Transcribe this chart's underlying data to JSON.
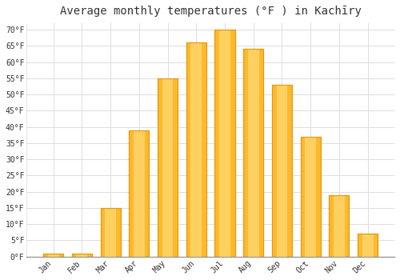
{
  "title": "Average monthly temperatures (°F ) in Kachīry",
  "months": [
    "Jan",
    "Feb",
    "Mar",
    "Apr",
    "May",
    "Jun",
    "Jul",
    "Aug",
    "Sep",
    "Oct",
    "Nov",
    "Dec"
  ],
  "values": [
    1,
    1,
    15,
    39,
    55,
    66,
    70,
    64,
    53,
    37,
    19,
    7
  ],
  "bar_color": "#FDB92E",
  "bar_edge_color": "#E8980A",
  "background_color": "#FFFFFF",
  "plot_bg_color": "#FFFFFF",
  "grid_color": "#DDDDDD",
  "text_color": "#333333",
  "ylim": [
    0,
    72
  ],
  "yticks": [
    0,
    5,
    10,
    15,
    20,
    25,
    30,
    35,
    40,
    45,
    50,
    55,
    60,
    65,
    70
  ],
  "ytick_labels": [
    "0°F",
    "5°F",
    "10°F",
    "15°F",
    "20°F",
    "25°F",
    "30°F",
    "35°F",
    "40°F",
    "45°F",
    "50°F",
    "55°F",
    "60°F",
    "65°F",
    "70°F"
  ],
  "title_fontsize": 10,
  "tick_fontsize": 7,
  "font_family": "monospace"
}
